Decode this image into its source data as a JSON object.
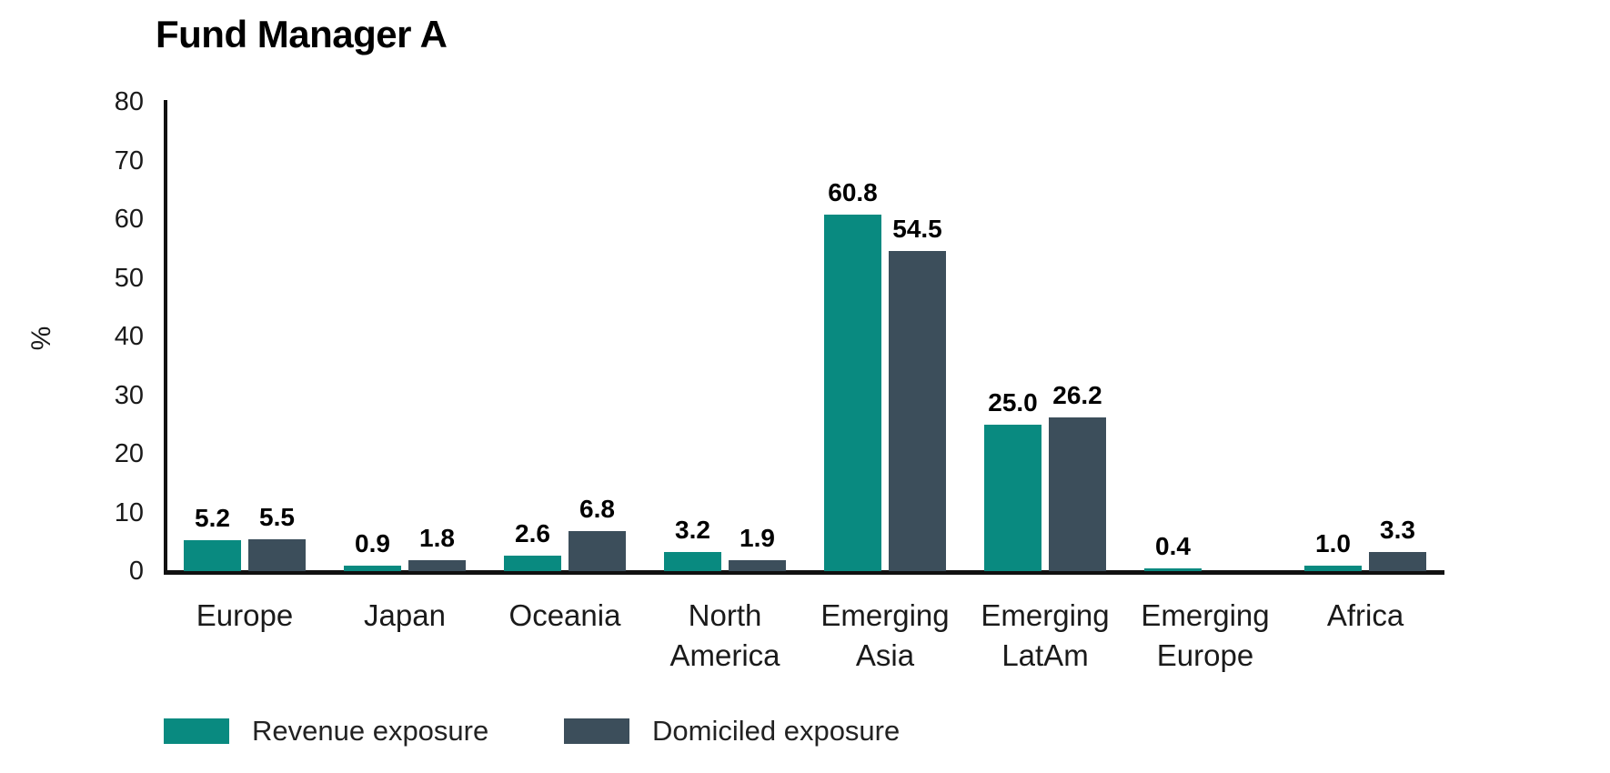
{
  "header": {
    "title": "Fund Manager A"
  },
  "colors": {
    "revenue": "#098a80",
    "domiciled": "#3c4e5b",
    "axis": "#111111",
    "text": "#1a1a1a",
    "background": "#ffffff"
  },
  "chart_data": {
    "type": "bar",
    "title": "Fund Manager A",
    "xlabel": "",
    "ylabel": "%",
    "ylim": [
      0,
      80
    ],
    "yticks": [
      0,
      10,
      20,
      30,
      40,
      50,
      60,
      70,
      80
    ],
    "grid": false,
    "legend_position": "bottom",
    "categories": [
      "Europe",
      "Japan",
      "Oceania",
      "North America",
      "Emerging Asia",
      "Emerging LatAm",
      "Emerging Europe",
      "Africa"
    ],
    "category_lines": [
      [
        "Europe"
      ],
      [
        "Japan"
      ],
      [
        "Oceania"
      ],
      [
        "North",
        "America"
      ],
      [
        "Emerging",
        "Asia"
      ],
      [
        "Emerging",
        "LatAm"
      ],
      [
        "Emerging",
        "Europe"
      ],
      [
        "Africa"
      ]
    ],
    "series": [
      {
        "name": "Revenue exposure",
        "color": "#098a80",
        "values": [
          5.2,
          0.9,
          2.6,
          3.2,
          60.8,
          25.0,
          0.4,
          1.0
        ],
        "labels": [
          "5.2",
          "0.9",
          "2.6",
          "3.2",
          "60.8",
          "25.0",
          "0.4",
          "1.0"
        ]
      },
      {
        "name": "Domiciled exposure",
        "color": "#3c4e5b",
        "values": [
          5.5,
          1.8,
          6.8,
          1.9,
          54.5,
          26.2,
          null,
          3.3
        ],
        "labels": [
          "5.5",
          "1.8",
          "6.8",
          "1.9",
          "54.5",
          "26.2",
          "",
          "3.3"
        ]
      }
    ]
  },
  "legend": {
    "items": [
      {
        "label": "Revenue exposure",
        "color": "#098a80"
      },
      {
        "label": "Domiciled exposure",
        "color": "#3c4e5b"
      }
    ]
  }
}
